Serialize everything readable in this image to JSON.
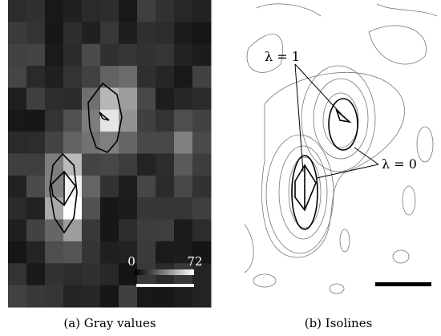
{
  "panels": [
    {
      "caption": "(a) Gray values",
      "colorbar": {
        "min": 0,
        "max": 72
      }
    },
    {
      "caption": "(b) Isolines",
      "annotations": [
        "λ = 1",
        "λ = 0"
      ]
    }
  ]
}
